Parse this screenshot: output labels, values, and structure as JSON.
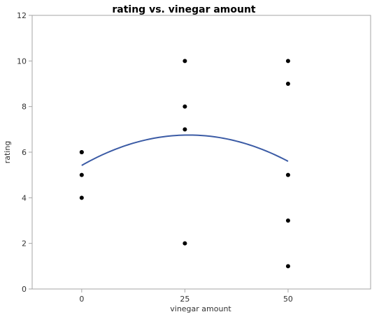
{
  "chart_data": {
    "type": "scatter",
    "title": "rating vs. vinegar amount",
    "xlabel": "vinegar amount",
    "ylabel": "rating",
    "xlim": [
      -12,
      70
    ],
    "ylim": [
      0,
      12
    ],
    "x_ticks": [
      0,
      25,
      50
    ],
    "y_ticks": [
      0,
      2,
      4,
      6,
      8,
      10,
      12
    ],
    "grid": false,
    "series": [
      {
        "points": [
          {
            "x": 0,
            "y": 6
          },
          {
            "x": 0,
            "y": 6
          },
          {
            "x": 0,
            "y": 5
          },
          {
            "x": 0,
            "y": 4
          },
          {
            "x": 25,
            "y": 10
          },
          {
            "x": 25,
            "y": 8
          },
          {
            "x": 25,
            "y": 7
          },
          {
            "x": 25,
            "y": 2
          },
          {
            "x": 50,
            "y": 10
          },
          {
            "x": 50,
            "y": 9
          },
          {
            "x": 50,
            "y": 5
          },
          {
            "x": 50,
            "y": 3
          },
          {
            "x": 50,
            "y": 1
          }
        ]
      }
    ],
    "fit_curve": {
      "type": "quadratic",
      "points": [
        {
          "x": 0,
          "y": 5.42
        },
        {
          "x": 25,
          "y": 6.75
        },
        {
          "x": 50,
          "y": 5.6
        }
      ],
      "color": "#3b5ba5"
    },
    "point_color": "#000000"
  }
}
